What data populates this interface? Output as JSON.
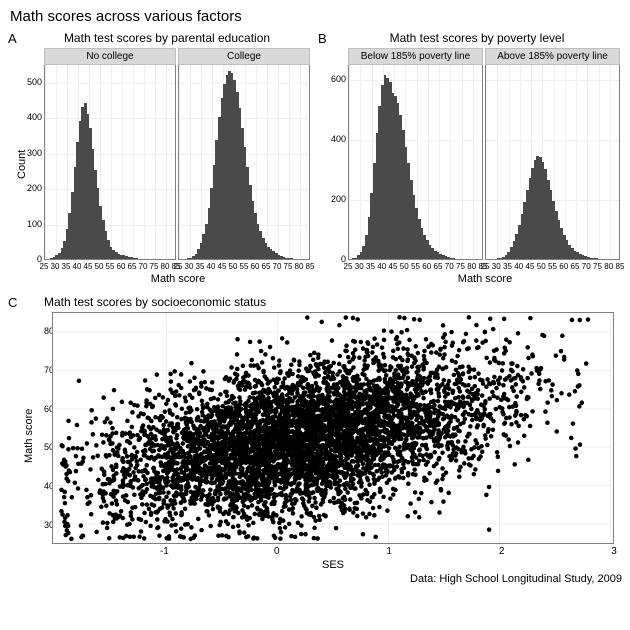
{
  "main_title": "Math scores across various factors",
  "caption": "Data: High School Longitudinal Study, 2009",
  "colors": {
    "bar_fill": "#4a4a4a",
    "point_fill": "#000000",
    "strip_bg": "#d9d9d9",
    "grid": "#efefef",
    "panel_border": "#808080",
    "background": "#ffffff"
  },
  "panelA": {
    "letter": "A",
    "title": "Math test scores by parental education",
    "type": "histogram",
    "xlabel": "Math score",
    "ylabel": "Count",
    "xlim": [
      25,
      85
    ],
    "xticks": [
      25,
      30,
      35,
      40,
      45,
      50,
      55,
      60,
      65,
      70,
      75,
      80,
      85
    ],
    "ylim": [
      0,
      550
    ],
    "yticks": [
      0,
      100,
      200,
      300,
      400,
      500
    ],
    "facets": [
      {
        "strip": "No college",
        "values": [
          0,
          0,
          2,
          5,
          10,
          18,
          30,
          50,
          85,
          130,
          190,
          260,
          330,
          390,
          430,
          440,
          410,
          370,
          310,
          250,
          200,
          150,
          110,
          80,
          55,
          35,
          25,
          20,
          15,
          12,
          10,
          8,
          6,
          5,
          3,
          2,
          1,
          1,
          0,
          0,
          0,
          0,
          0,
          0,
          0,
          0,
          0,
          0,
          0,
          0
        ]
      },
      {
        "strip": "College",
        "values": [
          0,
          0,
          0,
          2,
          4,
          8,
          15,
          28,
          45,
          70,
          100,
          145,
          200,
          265,
          335,
          400,
          455,
          495,
          520,
          530,
          525,
          505,
          470,
          425,
          370,
          315,
          260,
          210,
          165,
          130,
          100,
          78,
          60,
          45,
          35,
          28,
          22,
          17,
          12,
          9,
          6,
          4,
          3,
          2,
          1,
          1,
          0,
          0,
          0,
          0
        ]
      }
    ]
  },
  "panelB": {
    "letter": "B",
    "title": "Math test scores by poverty level",
    "type": "histogram",
    "xlabel": "Math score",
    "ylabel": "",
    "xlim": [
      25,
      85
    ],
    "xticks": [
      25,
      30,
      35,
      40,
      45,
      50,
      55,
      60,
      65,
      70,
      75,
      80,
      85
    ],
    "ylim": [
      0,
      650
    ],
    "yticks": [
      0,
      200,
      400,
      600
    ],
    "facets": [
      {
        "strip": "Below 185% poverty line",
        "values": [
          0,
          2,
          5,
          12,
          25,
          45,
          80,
          140,
          220,
          320,
          420,
          510,
          580,
          615,
          605,
          590,
          555,
          545,
          520,
          480,
          430,
          375,
          320,
          265,
          215,
          170,
          135,
          105,
          80,
          62,
          48,
          36,
          28,
          22,
          16,
          12,
          9,
          6,
          4,
          2,
          1,
          1,
          0,
          0,
          0,
          0,
          0,
          0,
          0,
          0
        ]
      },
      {
        "strip": "Above 185% poverty line",
        "values": [
          0,
          0,
          0,
          1,
          2,
          4,
          8,
          15,
          25,
          40,
          60,
          85,
          115,
          150,
          190,
          230,
          270,
          305,
          330,
          345,
          340,
          325,
          300,
          265,
          230,
          195,
          160,
          130,
          102,
          80,
          62,
          48,
          36,
          28,
          22,
          16,
          12,
          9,
          6,
          4,
          3,
          2,
          1,
          1,
          0,
          0,
          0,
          0,
          0,
          0
        ]
      }
    ]
  },
  "panelC": {
    "letter": "C",
    "title": "Math test scores by socioeconomic status",
    "type": "scatter",
    "xlabel": "SES",
    "ylabel": "Math score",
    "xlim": [
      -2,
      3
    ],
    "xticks": [
      -1,
      0,
      1,
      2,
      3
    ],
    "ylim": [
      25,
      85
    ],
    "yticks": [
      30,
      40,
      50,
      60,
      70,
      80
    ],
    "n_points": 5500,
    "point_radius": 2.3,
    "point_opacity": 1,
    "cloud": {
      "x_mean": 0.2,
      "x_sd": 0.85,
      "slope": 5.5,
      "intercept": 51,
      "y_resid_sd": 9.5
    }
  }
}
